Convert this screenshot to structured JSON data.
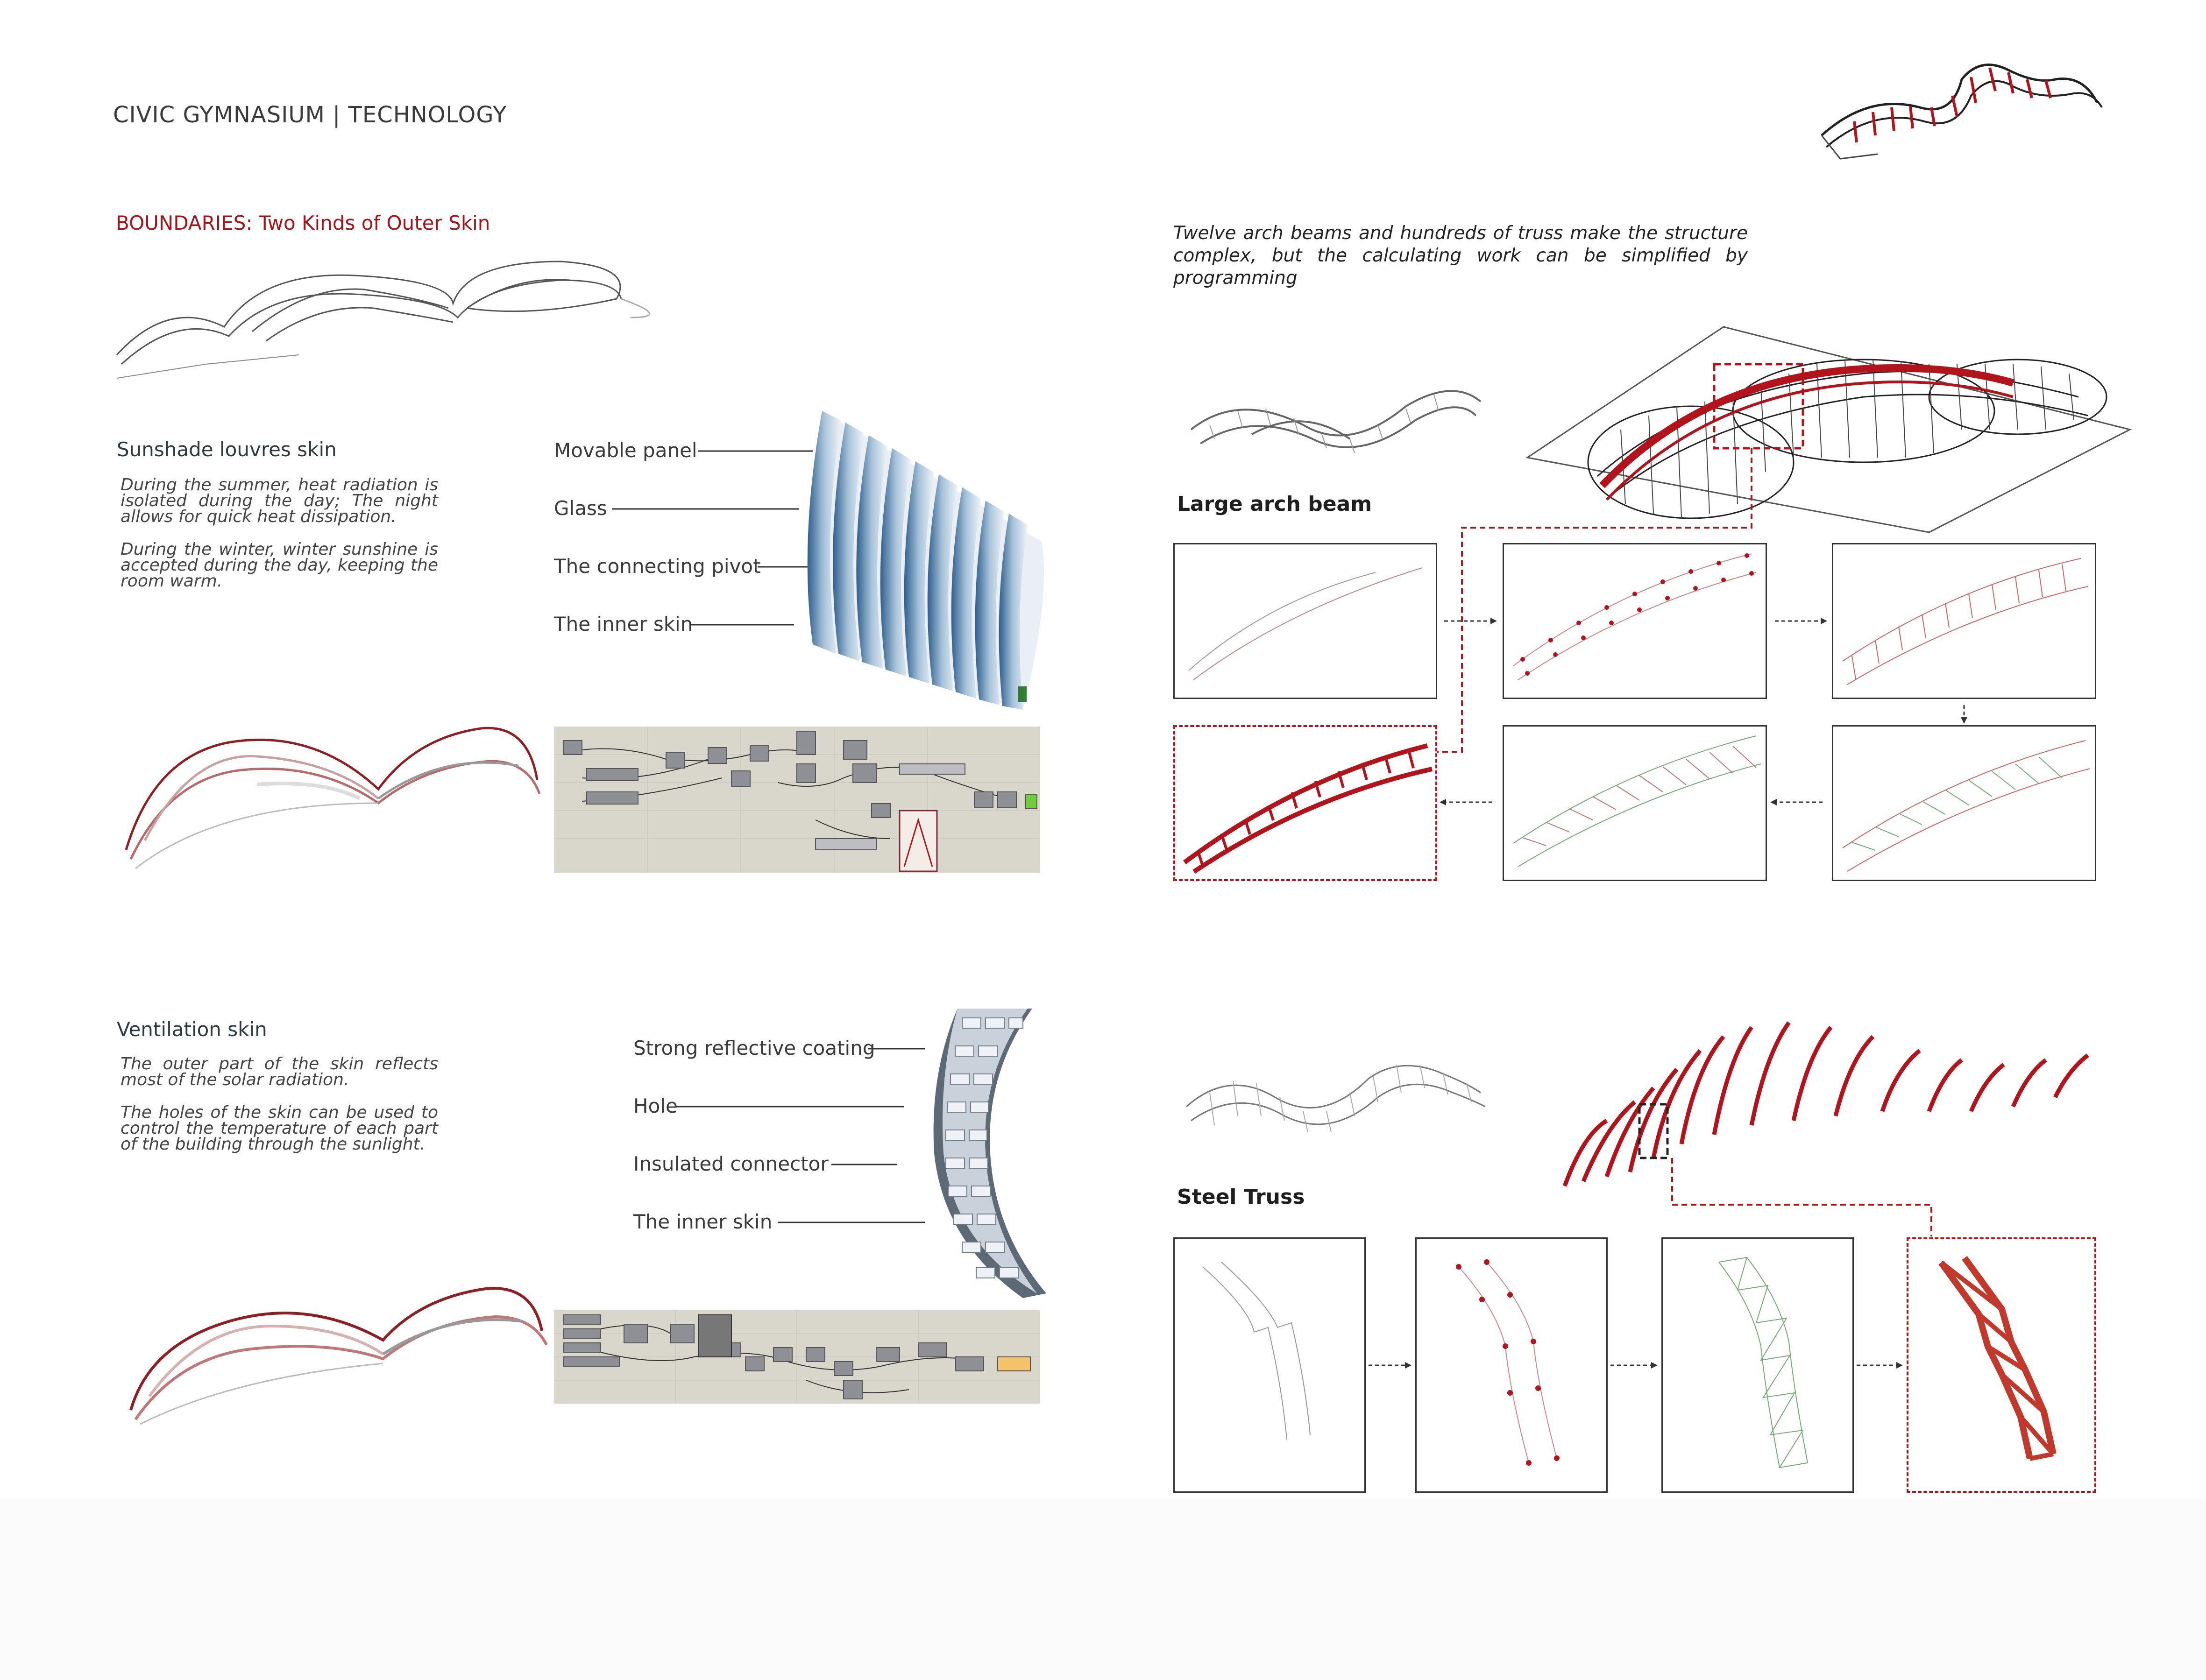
{
  "header": {
    "title": "CIVIC GYMNASIUM | TECHNOLOGY",
    "subtitle": "BOUNDARIES: Two Kinds of Outer Skin"
  },
  "structure_note": "Twelve arch beams and hundreds of truss make the structure complex, but the calculating work can be simplified by programming",
  "sunshade": {
    "heading": "Sunshade louvres skin",
    "para1": "During the summer, heat radiation is isolated during the day; The night allows for quick heat dissipation.",
    "para2": "During the winter, winter sunshine is accepted during the day, keeping the room warm.",
    "labels": [
      "Movable panel",
      "Glass",
      "The connecting pivot",
      "The inner skin"
    ]
  },
  "ventilation": {
    "heading": "Ventilation skin",
    "para1": "The outer part of the skin reflects most of the solar radiation.",
    "para2": "The holes of the skin can be used to control the temperature of each part of the building through the sunlight.",
    "labels": [
      "Strong reflective coating",
      "Hole",
      "Insulated connector",
      "The inner skin"
    ]
  },
  "arch_beam": {
    "heading": "Large arch beam"
  },
  "steel_truss": {
    "heading": "Steel Truss"
  },
  "colors": {
    "accent_red": "#a8131a",
    "structure_red": "#b3141c",
    "panel_bg": "#d9d6cc"
  }
}
